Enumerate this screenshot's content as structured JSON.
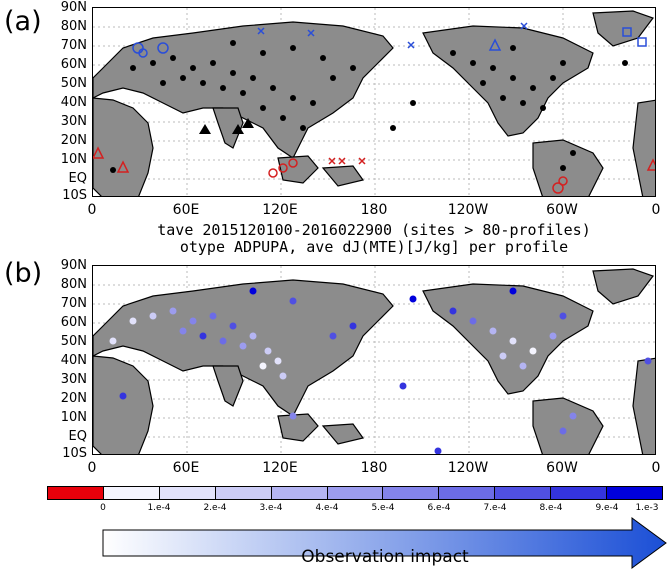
{
  "panels": [
    {
      "letter": "(a)",
      "caption_line1": "tave 2015120100-2016022900 (sites > 80-profiles)",
      "caption_line2": "otype ADPUPA, ave dJ(MTE)[J/kg] per profile"
    },
    {
      "letter": "(b)"
    }
  ],
  "lat_labels": [
    "90N",
    "80N",
    "70N",
    "60N",
    "50N",
    "40N",
    "30N",
    "20N",
    "10N",
    "EQ",
    "10S"
  ],
  "lon_labels": [
    "0",
    "60E",
    "120E",
    "180",
    "120W",
    "60W",
    "0"
  ],
  "colorbar": {
    "labels": [
      "0",
      "1.e-4",
      "2.e-4",
      "3.e-4",
      "4.e-4",
      "5.e-4",
      "6.e-4",
      "7.e-4",
      "8.e-4",
      "9.e-4",
      "1.e-3"
    ],
    "colors": [
      "#e8000b",
      "#f4f4fe",
      "#e2e2fb",
      "#ccccf6",
      "#b4b4f2",
      "#9c9cee",
      "#8484ea",
      "#6c6ce6",
      "#5050e2",
      "#3434de",
      "#0000dc"
    ]
  },
  "arrow_label": "Observation impact",
  "colors": {
    "land": "#8c8c8c",
    "ocean": "#ffffff",
    "marker_black": "#000000",
    "marker_red": "#d42020",
    "marker_blue": "#2a4ed8"
  }
}
